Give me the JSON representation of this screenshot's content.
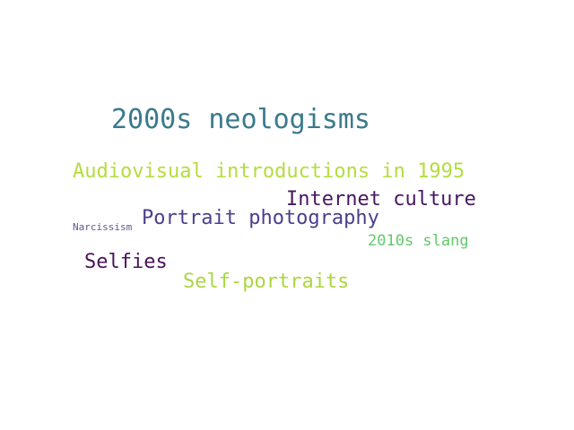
{
  "word_cloud": {
    "words": [
      {
        "text": "2000s neologisms",
        "color": "#3b7a8c"
      },
      {
        "text": "Audiovisual introductions in 1995",
        "color": "#b5dc3f"
      },
      {
        "text": "Internet culture",
        "color": "#47175f"
      },
      {
        "text": "Portrait photography",
        "color": "#4b3f8c"
      },
      {
        "text": "Narcissism",
        "color": "#5c5a8e"
      },
      {
        "text": "2010s slang",
        "color": "#62c86a"
      },
      {
        "text": "Selfies",
        "color": "#4a1458"
      },
      {
        "text": "Self-portraits",
        "color": "#acd641"
      }
    ]
  }
}
